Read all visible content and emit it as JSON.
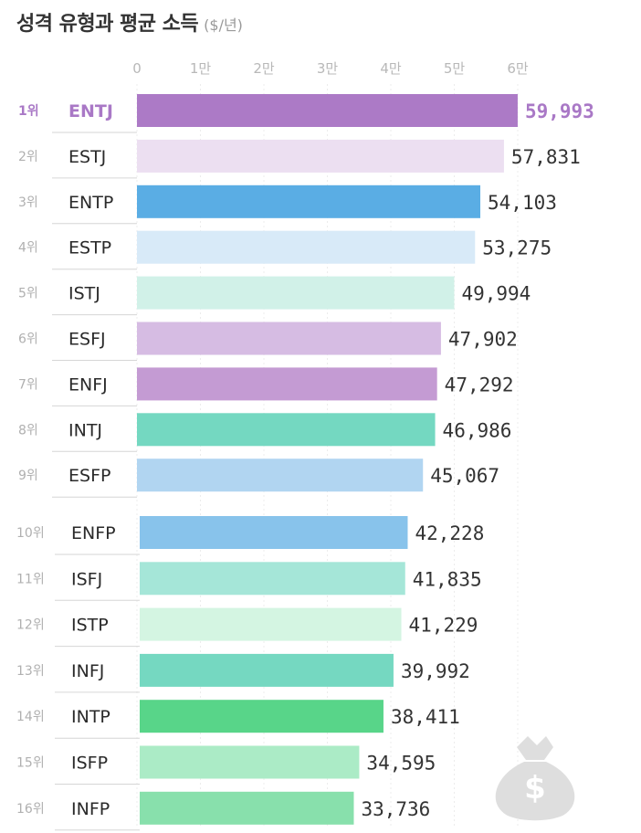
{
  "title": "성격 유형과 평균 소득",
  "unit": "($/년)",
  "chart_data": {
    "type": "bar",
    "orientation": "horizontal",
    "title": "성격 유형과 평균 소득",
    "xlabel": "",
    "ylabel": "",
    "xlim": [
      0,
      60000
    ],
    "ticks": [
      0,
      10000,
      20000,
      30000,
      40000,
      50000,
      60000
    ],
    "tick_labels": [
      "0",
      "1만",
      "2만",
      "3만",
      "4만",
      "5만",
      "6만"
    ],
    "grid": true,
    "ranks": [
      "1위",
      "2위",
      "3위",
      "4위",
      "5위",
      "6위",
      "7위",
      "8위",
      "9위",
      "10위",
      "11위",
      "12위",
      "13위",
      "14위",
      "15위",
      "16위"
    ],
    "categories": [
      "ENTJ",
      "ESTJ",
      "ENTP",
      "ESTP",
      "ISTJ",
      "ESFJ",
      "ENFJ",
      "INTJ",
      "ESFP",
      "ENFP",
      "ISFJ",
      "ISTP",
      "INFJ",
      "INTP",
      "ISFP",
      "INFP"
    ],
    "values": [
      59993,
      57831,
      54103,
      53275,
      49994,
      47902,
      47292,
      46986,
      45067,
      42228,
      41835,
      41229,
      39992,
      38411,
      34595,
      33736
    ],
    "value_labels": [
      "59,993",
      "57,831",
      "54,103",
      "53,275",
      "49,994",
      "47,902",
      "47,292",
      "46,986",
      "45,067",
      "42,228",
      "41,835",
      "41,229",
      "39,992",
      "38,411",
      "34,595",
      "33,736"
    ],
    "colors": [
      "#ac7ac6",
      "#ecdff1",
      "#5aade4",
      "#d8eaf8",
      "#d1f1e8",
      "#d6bce3",
      "#c49bd3",
      "#74d8c1",
      "#b1d5f1",
      "#88c3eb",
      "#a5e6d8",
      "#d4f5e2",
      "#75d8c1",
      "#58d589",
      "#abebc6",
      "#88e0ac"
    ]
  },
  "decor": {
    "money_bag_icon": "money-bag-icon",
    "symbol": "$"
  }
}
